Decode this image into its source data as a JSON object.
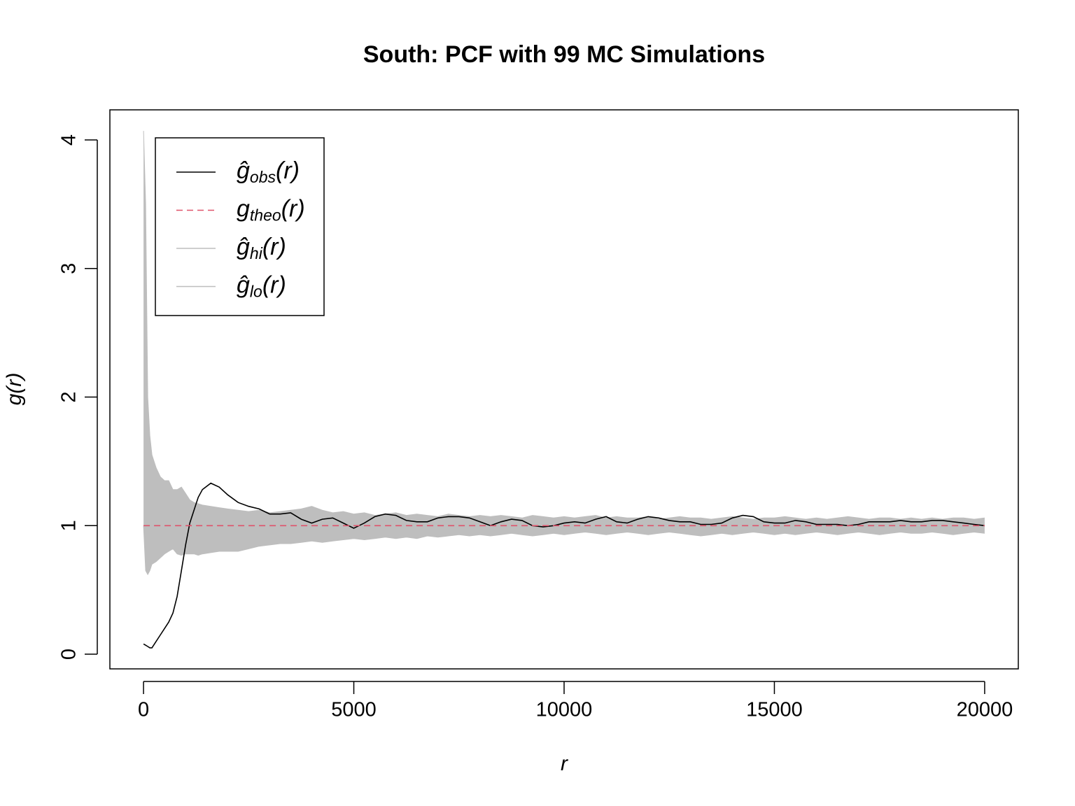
{
  "chart_data": {
    "type": "line",
    "title": "South: PCF with 99 MC Simulations",
    "x_label": "r",
    "y_label": "g(r)",
    "xlim": [
      -800,
      20800
    ],
    "ylim": [
      -0.114,
      4.234
    ],
    "xticks": [
      0,
      5000,
      10000,
      15000,
      20000
    ],
    "yticks": [
      0,
      1,
      2,
      3,
      4
    ],
    "legend_position": "top-left",
    "x": [
      0,
      50,
      100,
      150,
      200,
      300,
      400,
      500,
      600,
      700,
      800,
      900,
      1000,
      1100,
      1200,
      1300,
      1400,
      1600,
      1800,
      2000,
      2250,
      2500,
      2750,
      3000,
      3250,
      3500,
      3750,
      4000,
      4250,
      4500,
      4750,
      5000,
      5250,
      5500,
      5750,
      6000,
      6250,
      6500,
      6750,
      7000,
      7250,
      7500,
      7750,
      8000,
      8250,
      8500,
      8750,
      9000,
      9250,
      9500,
      9750,
      10000,
      10250,
      10500,
      10750,
      11000,
      11250,
      11500,
      11750,
      12000,
      12250,
      12500,
      12750,
      13000,
      13250,
      13500,
      13750,
      14000,
      14250,
      14500,
      14750,
      15000,
      15250,
      15500,
      15750,
      16000,
      16250,
      16500,
      16750,
      17000,
      17250,
      17500,
      17750,
      18000,
      18250,
      18500,
      18750,
      19000,
      19250,
      19500,
      19750,
      20000
    ],
    "series": [
      {
        "name": "ĝobs(r)",
        "color": "#000000",
        "style": "solid",
        "values": [
          0.08,
          0.07,
          0.06,
          0.05,
          0.05,
          0.1,
          0.15,
          0.2,
          0.25,
          0.32,
          0.45,
          0.65,
          0.85,
          1.02,
          1.12,
          1.22,
          1.28,
          1.33,
          1.3,
          1.24,
          1.18,
          1.15,
          1.13,
          1.09,
          1.09,
          1.1,
          1.05,
          1.02,
          1.05,
          1.06,
          1.02,
          0.98,
          1.02,
          1.07,
          1.09,
          1.08,
          1.04,
          1.03,
          1.03,
          1.06,
          1.07,
          1.07,
          1.06,
          1.03,
          1.0,
          1.03,
          1.05,
          1.04,
          1.0,
          0.99,
          1.0,
          1.02,
          1.03,
          1.02,
          1.05,
          1.07,
          1.03,
          1.02,
          1.05,
          1.07,
          1.06,
          1.04,
          1.03,
          1.03,
          1.01,
          1.01,
          1.02,
          1.06,
          1.08,
          1.07,
          1.03,
          1.02,
          1.02,
          1.04,
          1.03,
          1.01,
          1.01,
          1.01,
          1.0,
          1.01,
          1.03,
          1.03,
          1.03,
          1.04,
          1.03,
          1.03,
          1.04,
          1.04,
          1.03,
          1.02,
          1.01,
          1.0
        ]
      },
      {
        "name": "gtheo(r)",
        "color": "#DF536B",
        "style": "dashed",
        "values": [
          1,
          1,
          1,
          1,
          1,
          1,
          1,
          1,
          1,
          1,
          1,
          1,
          1,
          1,
          1,
          1,
          1,
          1,
          1,
          1,
          1,
          1,
          1,
          1,
          1,
          1,
          1,
          1,
          1,
          1,
          1,
          1,
          1,
          1,
          1,
          1,
          1,
          1,
          1,
          1,
          1,
          1,
          1,
          1,
          1,
          1,
          1,
          1,
          1,
          1,
          1,
          1,
          1,
          1,
          1,
          1,
          1,
          1,
          1,
          1,
          1,
          1,
          1,
          1,
          1,
          1,
          1,
          1,
          1,
          1,
          1,
          1,
          1,
          1,
          1,
          1,
          1,
          1,
          1,
          1,
          1,
          1,
          1,
          1,
          1,
          1,
          1,
          1,
          1,
          1,
          1,
          1
        ]
      },
      {
        "name": "ĝhi(r)",
        "color": "#BEBEBE",
        "style": "band-upper",
        "values": [
          4.07,
          3.5,
          2.0,
          1.7,
          1.55,
          1.45,
          1.38,
          1.35,
          1.35,
          1.28,
          1.28,
          1.3,
          1.25,
          1.2,
          1.18,
          1.17,
          1.16,
          1.15,
          1.14,
          1.13,
          1.12,
          1.11,
          1.12,
          1.1,
          1.11,
          1.12,
          1.13,
          1.15,
          1.12,
          1.1,
          1.11,
          1.09,
          1.1,
          1.08,
          1.09,
          1.1,
          1.08,
          1.09,
          1.08,
          1.07,
          1.09,
          1.08,
          1.07,
          1.08,
          1.07,
          1.08,
          1.07,
          1.06,
          1.08,
          1.07,
          1.06,
          1.07,
          1.06,
          1.07,
          1.08,
          1.06,
          1.07,
          1.06,
          1.06,
          1.07,
          1.05,
          1.06,
          1.07,
          1.06,
          1.06,
          1.05,
          1.06,
          1.07,
          1.06,
          1.05,
          1.06,
          1.06,
          1.07,
          1.06,
          1.05,
          1.06,
          1.05,
          1.06,
          1.07,
          1.06,
          1.05,
          1.06,
          1.06,
          1.05,
          1.06,
          1.05,
          1.06,
          1.05,
          1.06,
          1.06,
          1.05,
          1.06
        ]
      },
      {
        "name": "ĝlo(r)",
        "color": "#BEBEBE",
        "style": "band-lower",
        "values": [
          1.0,
          0.65,
          0.62,
          0.65,
          0.7,
          0.72,
          0.75,
          0.78,
          0.8,
          0.82,
          0.78,
          0.77,
          0.78,
          0.78,
          0.78,
          0.77,
          0.78,
          0.79,
          0.8,
          0.8,
          0.8,
          0.82,
          0.84,
          0.85,
          0.86,
          0.86,
          0.87,
          0.88,
          0.87,
          0.88,
          0.89,
          0.9,
          0.89,
          0.9,
          0.91,
          0.9,
          0.91,
          0.9,
          0.92,
          0.91,
          0.92,
          0.93,
          0.92,
          0.93,
          0.92,
          0.93,
          0.94,
          0.93,
          0.92,
          0.93,
          0.94,
          0.93,
          0.94,
          0.95,
          0.94,
          0.93,
          0.94,
          0.95,
          0.94,
          0.93,
          0.94,
          0.95,
          0.94,
          0.93,
          0.92,
          0.93,
          0.94,
          0.93,
          0.94,
          0.95,
          0.94,
          0.93,
          0.94,
          0.93,
          0.94,
          0.95,
          0.94,
          0.93,
          0.94,
          0.95,
          0.94,
          0.93,
          0.94,
          0.95,
          0.94,
          0.94,
          0.95,
          0.94,
          0.93,
          0.94,
          0.95,
          0.94
        ]
      }
    ]
  }
}
